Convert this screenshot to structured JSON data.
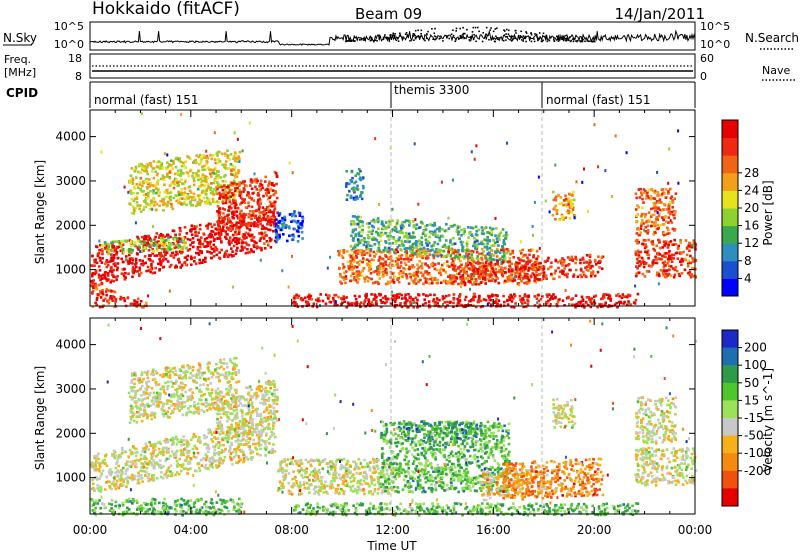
{
  "header": {
    "station": "Hokkaido (fitACF)",
    "beam": "Beam 09",
    "date": "14/Jan/2011"
  },
  "small_panels": {
    "nsky_label": "N.Sky",
    "nsearch_label": "N.Search",
    "count_top_tick": "10^5",
    "count_bottom_tick": "10^0",
    "freq_label_1": "Freq.",
    "freq_label_2": "[MHz]",
    "freq_ticks": [
      "18",
      "8"
    ],
    "nave_label": "Nave",
    "nave_ticks": [
      "60",
      "0"
    ],
    "cpid_label": "CPID",
    "cpid_segments": [
      {
        "label": "normal (fast) 151",
        "start_h": 0,
        "end_h": 12
      },
      {
        "label": "themis 3300",
        "start_h": 12,
        "end_h": 18
      },
      {
        "label": "normal (fast) 151",
        "start_h": 18,
        "end_h": 24
      }
    ]
  },
  "chart_data": [
    {
      "type": "heatmap",
      "name": "power-panel",
      "ylabel": "Slant Range [km]",
      "xlim": [
        0,
        24
      ],
      "ylim": [
        180,
        4600
      ],
      "yticks": [
        1000,
        2000,
        3000,
        4000
      ],
      "colorbar": {
        "label": "Power [dB]",
        "ticks": [
          4,
          8,
          12,
          16,
          20,
          24,
          28
        ],
        "colors": [
          "#0000ff",
          "#1c4fd0",
          "#2f8ec0",
          "#3aa84e",
          "#8fd12f",
          "#e8e21c",
          "#f2a01a",
          "#f06514",
          "#ee2a12",
          "#e60000"
        ]
      },
      "regions": [
        {
          "t0": 0.0,
          "t1": 7.3,
          "r0": 650,
          "r1": 1550,
          "slope": 120,
          "c": 9
        },
        {
          "t0": 0.4,
          "t1": 3.8,
          "r0": 1350,
          "r1": 1650,
          "slope": 40,
          "c": 4
        },
        {
          "t0": 1.5,
          "t1": 5.9,
          "r0": 2250,
          "r1": 3400,
          "slope": 80,
          "c": 5
        },
        {
          "t0": 5.0,
          "t1": 7.4,
          "r0": 1800,
          "r1": 2900,
          "slope": 150,
          "c": 8
        },
        {
          "t0": 7.3,
          "t1": 8.4,
          "r0": 1650,
          "r1": 2350,
          "slope": 0,
          "c": 1
        },
        {
          "t0": 9.8,
          "t1": 17.8,
          "r0": 700,
          "r1": 1500,
          "slope": 0,
          "c": 7
        },
        {
          "t0": 10.3,
          "t1": 16.5,
          "r0": 1500,
          "r1": 2250,
          "slope": -50,
          "c": 3
        },
        {
          "t0": 14.3,
          "t1": 20.3,
          "r0": 650,
          "r1": 1150,
          "slope": 40,
          "c": 8
        },
        {
          "t0": 8.0,
          "t1": 21.7,
          "r0": 180,
          "r1": 480,
          "slope": 0,
          "c": 9
        },
        {
          "t0": 18.3,
          "t1": 19.2,
          "r0": 2150,
          "r1": 2800,
          "slope": 0,
          "c": 6
        },
        {
          "t0": 21.6,
          "t1": 24.0,
          "r0": 850,
          "r1": 1700,
          "slope": 0,
          "c": 8
        },
        {
          "t0": 21.6,
          "t1": 23.2,
          "r0": 1800,
          "r1": 2850,
          "slope": 0,
          "c": 7
        },
        {
          "t0": 0.0,
          "t1": 2.2,
          "r0": 180,
          "r1": 750,
          "slope": -200,
          "c": 8
        },
        {
          "t0": 10.1,
          "t1": 10.8,
          "r0": 2600,
          "r1": 3300,
          "slope": 0,
          "c": 2
        }
      ]
    },
    {
      "type": "heatmap",
      "name": "velocity-panel",
      "ylabel": "Slant Range [km]",
      "xlim": [
        0,
        24
      ],
      "ylim": [
        180,
        4600
      ],
      "yticks": [
        1000,
        2000,
        3000,
        4000
      ],
      "xlabel": "Time UT",
      "xticks": [
        "00:00",
        "04:00",
        "08:00",
        "12:00",
        "16:00",
        "20:00",
        "00:00"
      ],
      "colorbar": {
        "label": "Velocity [m s^-1]",
        "ticks": [
          200,
          100,
          50,
          15,
          -15,
          -50,
          -100,
          -200
        ],
        "colors": [
          "#1c28c8",
          "#1f6fb0",
          "#2e9a4a",
          "#4fc52e",
          "#9be25a",
          "#c8c8c8",
          "#f5b01a",
          "#f58a10",
          "#f0520e",
          "#e60000"
        ]
      },
      "regions": [
        {
          "t0": 0.0,
          "t1": 7.3,
          "r0": 650,
          "r1": 1550,
          "slope": 120,
          "c": 5
        },
        {
          "t0": 1.5,
          "t1": 5.9,
          "r0": 2250,
          "r1": 3400,
          "slope": 80,
          "c": 5
        },
        {
          "t0": 5.0,
          "t1": 7.4,
          "r0": 1800,
          "r1": 2900,
          "slope": 150,
          "c": 5
        },
        {
          "t0": 0.0,
          "t1": 6.0,
          "r0": 180,
          "r1": 550,
          "slope": 0,
          "c": 3
        },
        {
          "t0": 7.4,
          "t1": 12.0,
          "r0": 650,
          "r1": 1450,
          "slope": 0,
          "c": 5
        },
        {
          "t0": 11.5,
          "t1": 16.6,
          "r0": 700,
          "r1": 2300,
          "slope": 0,
          "c": 3
        },
        {
          "t0": 12.5,
          "t1": 15.5,
          "r0": 1900,
          "r1": 2300,
          "slope": 0,
          "c": 2
        },
        {
          "t0": 15.5,
          "t1": 18.0,
          "r0": 500,
          "r1": 1150,
          "slope": 60,
          "c": 6
        },
        {
          "t0": 16.3,
          "t1": 20.3,
          "r0": 500,
          "r1": 1350,
          "slope": 30,
          "c": 7
        },
        {
          "t0": 8.0,
          "t1": 21.7,
          "r0": 180,
          "r1": 450,
          "slope": 0,
          "c": 3
        },
        {
          "t0": 21.6,
          "t1": 24.0,
          "r0": 850,
          "r1": 1700,
          "slope": 0,
          "c": 5
        },
        {
          "t0": 21.6,
          "t1": 23.2,
          "r0": 1800,
          "r1": 2850,
          "slope": 0,
          "c": 5
        },
        {
          "t0": 18.3,
          "t1": 19.2,
          "r0": 2150,
          "r1": 2800,
          "slope": 0,
          "c": 5
        }
      ]
    }
  ]
}
